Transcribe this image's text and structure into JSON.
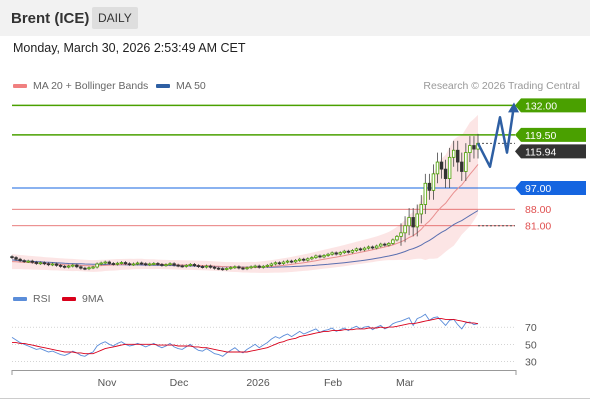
{
  "header": {
    "title": "Brent (ICE)",
    "timeframe": "DAILY"
  },
  "datetime": "Monday, March 30, 2026 2:53:49 AM CET",
  "credit": "Research © 2026 Trading Central",
  "legend": [
    {
      "label": "MA 20 + Bollinger Bands",
      "color": "#f08080"
    },
    {
      "label": "MA 50",
      "color": "#2e5fa3"
    }
  ],
  "rsi_legend": [
    {
      "label": "RSI",
      "color": "#5b8dd9"
    },
    {
      "label": "9MA",
      "color": "#d9001b"
    }
  ],
  "colors": {
    "green": "#4aa000",
    "blue": "#1565e0",
    "red": "#e05050",
    "dark": "#333333",
    "bullish": "#4aa000",
    "bearish": "#333333"
  },
  "chart_data": [
    {
      "type": "candlestick",
      "ylim": [
        58,
        136
      ],
      "x_ticks": [
        "Nov",
        "Dec",
        "2026",
        "Feb",
        "Mar"
      ],
      "levels": [
        {
          "value": 132.0,
          "label": "132.00",
          "color": "#4aa000",
          "style": "resistance"
        },
        {
          "value": 119.5,
          "label": "119.50",
          "color": "#4aa000",
          "style": "resistance"
        },
        {
          "value": 115.94,
          "label": "115.94",
          "color": "#333333",
          "style": "last"
        },
        {
          "value": 97.0,
          "label": "97.00",
          "color": "#1565e0",
          "style": "pivot"
        },
        {
          "value": 88.0,
          "label": "88.00",
          "color": "#e05050",
          "style": "support"
        },
        {
          "value": 81.0,
          "label": "81.00",
          "color": "#e05050",
          "style": "support"
        }
      ],
      "forecast": [
        115.94,
        106,
        127,
        112,
        132
      ],
      "closes": [
        67.5,
        66.8,
        66.2,
        65.8,
        66.0,
        65.5,
        65.0,
        65.3,
        64.9,
        64.5,
        64.8,
        64.2,
        63.8,
        63.5,
        63.9,
        64.3,
        63.6,
        63.0,
        62.8,
        63.2,
        63.5,
        64.8,
        65.2,
        65.6,
        65.0,
        64.7,
        65.1,
        65.4,
        64.9,
        64.6,
        64.8,
        65.2,
        64.9,
        64.5,
        64.8,
        65.0,
        64.6,
        64.2,
        64.5,
        64.9,
        64.3,
        64.0,
        63.8,
        64.2,
        64.6,
        64.1,
        63.7,
        63.5,
        63.9,
        63.4,
        63.0,
        62.8,
        62.5,
        62.9,
        63.3,
        63.6,
        63.1,
        62.8,
        63.2,
        63.6,
        63.9,
        63.4,
        63.8,
        64.2,
        64.8,
        65.3,
        65.0,
        65.6,
        66.0,
        65.7,
        66.3,
        66.8,
        66.4,
        67.0,
        67.5,
        68.2,
        67.8,
        68.4,
        68.9,
        69.5,
        69.0,
        69.6,
        70.2,
        69.8,
        70.5,
        71.2,
        70.8,
        71.5,
        72.0,
        71.6,
        72.4,
        73.2,
        72.8,
        73.5,
        75.0,
        76.5,
        78.0,
        81.0,
        84.5,
        80.5,
        86.0,
        90.0,
        99.0,
        96.0,
        103.0,
        108.0,
        105.0,
        101.0,
        110.0,
        113.0,
        108.0,
        104.0,
        112.0,
        115.0,
        113.5,
        115.94
      ],
      "ma50": [
        66.5,
        66.3,
        66.2,
        66.1,
        66.0,
        65.9,
        65.8,
        65.7,
        65.6,
        65.5,
        65.4,
        65.3,
        65.2,
        65.1,
        65.0,
        64.95,
        64.9,
        64.85,
        64.8,
        64.75,
        64.7,
        64.65,
        64.6,
        64.58,
        64.55,
        64.52,
        64.5,
        64.48,
        64.45,
        64.42,
        64.4,
        64.38,
        64.35,
        64.32,
        64.3,
        64.27,
        64.24,
        64.2,
        64.17,
        64.14,
        64.1,
        64.06,
        64.02,
        63.98,
        63.95,
        63.92,
        63.88,
        63.84,
        63.8,
        63.76,
        63.72,
        63.68,
        63.64,
        63.6,
        63.56,
        63.53,
        63.5,
        63.48,
        63.46,
        63.45,
        63.44,
        63.43,
        63.42,
        63.42,
        63.43,
        63.45,
        63.5,
        63.56,
        63.62,
        63.68,
        63.75,
        63.83,
        63.92,
        64.02,
        64.12,
        64.25,
        64.38,
        64.52,
        64.66,
        64.82,
        64.98,
        65.15,
        65.33,
        65.52,
        65.72,
        65.93,
        66.15,
        66.4,
        66.66,
        66.92,
        67.2,
        67.5,
        67.82,
        68.16,
        68.55,
        69.0,
        69.5,
        70.1,
        70.8,
        71.3,
        72.0,
        72.8,
        73.9,
        74.8,
        75.9,
        77.1,
        78.2,
        79.1,
        80.3,
        81.5,
        82.4,
        83.2,
        84.3,
        85.4,
        86.4,
        87.4
      ],
      "ma20": [
        65.8,
        65.7,
        65.6,
        65.5,
        65.4,
        65.3,
        65.2,
        65.1,
        65.0,
        64.9,
        64.8,
        64.7,
        64.6,
        64.5,
        64.4,
        64.35,
        64.3,
        64.2,
        64.1,
        64.0,
        63.95,
        64.0,
        64.1,
        64.2,
        64.3,
        64.4,
        64.5,
        64.6,
        64.65,
        64.7,
        64.75,
        64.8,
        64.8,
        64.75,
        64.7,
        64.7,
        64.65,
        64.6,
        64.55,
        64.5,
        64.45,
        64.4,
        64.35,
        64.3,
        64.3,
        64.25,
        64.2,
        64.15,
        64.1,
        64.0,
        63.9,
        63.8,
        63.7,
        63.6,
        63.55,
        63.5,
        63.45,
        63.4,
        63.38,
        63.36,
        63.35,
        63.4,
        63.5,
        63.6,
        63.75,
        63.9,
        64.05,
        64.2,
        64.4,
        64.6,
        64.85,
        65.1,
        65.35,
        65.6,
        65.9,
        66.2,
        66.5,
        66.8,
        67.1,
        67.4,
        67.7,
        68.0,
        68.35,
        68.7,
        69.05,
        69.4,
        69.75,
        70.1,
        70.45,
        70.8,
        71.2,
        71.6,
        72.0,
        72.4,
        72.9,
        73.5,
        74.2,
        75.0,
        76.0,
        76.8,
        78.0,
        79.5,
        81.5,
        83.0,
        85.0,
        87.2,
        89.0,
        90.5,
        92.8,
        95.0,
        96.8,
        98.3,
        100.5,
        102.8,
        104.8,
        107.0
      ],
      "bb_width": [
        3.2,
        3.1,
        3.0,
        3.0,
        2.9,
        2.9,
        2.8,
        2.8,
        2.7,
        2.7,
        2.7,
        2.6,
        2.6,
        2.6,
        2.6,
        2.6,
        2.5,
        2.5,
        2.5,
        2.5,
        2.5,
        2.5,
        2.5,
        2.4,
        2.4,
        2.4,
        2.4,
        2.3,
        2.3,
        2.3,
        2.2,
        2.2,
        2.2,
        2.1,
        2.1,
        2.1,
        2.0,
        2.0,
        2.0,
        2.0,
        2.0,
        2.0,
        2.0,
        2.0,
        2.0,
        2.0,
        2.0,
        2.0,
        2.0,
        2.0,
        2.0,
        2.0,
        2.0,
        2.0,
        2.1,
        2.1,
        2.1,
        2.2,
        2.2,
        2.3,
        2.3,
        2.4,
        2.5,
        2.6,
        2.7,
        2.8,
        2.9,
        3.0,
        3.1,
        3.2,
        3.3,
        3.4,
        3.5,
        3.6,
        3.7,
        3.8,
        3.9,
        4.0,
        4.1,
        4.2,
        4.3,
        4.4,
        4.5,
        4.6,
        4.7,
        4.8,
        4.9,
        5.0,
        5.1,
        5.2,
        5.3,
        5.5,
        5.7,
        6.0,
        6.5,
        7.0,
        7.6,
        8.5,
        9.5,
        10.0,
        11.0,
        12.5,
        15.0,
        16.0,
        18.0,
        20.0,
        20.5,
        20.5,
        21.5,
        22.5,
        22.0,
        21.0,
        21.5,
        22.0,
        21.5,
        21.0
      ]
    },
    {
      "type": "line",
      "ylim": [
        20,
        90
      ],
      "y_ticks": [
        70,
        50,
        30
      ],
      "rsi": [
        58,
        55,
        52,
        50,
        48,
        46,
        44,
        45,
        43,
        41,
        42,
        40,
        38,
        37,
        39,
        42,
        40,
        37,
        36,
        39,
        41,
        48,
        51,
        53,
        50,
        48,
        51,
        53,
        50,
        48,
        49,
        51,
        49,
        47,
        49,
        51,
        48,
        46,
        48,
        51,
        47,
        45,
        44,
        47,
        50,
        46,
        43,
        42,
        45,
        42,
        39,
        38,
        36,
        40,
        43,
        46,
        42,
        40,
        44,
        47,
        50,
        46,
        49,
        52,
        56,
        59,
        57,
        60,
        62,
        59,
        62,
        65,
        62,
        64,
        66,
        68,
        64,
        66,
        67,
        69,
        65,
        67,
        69,
        66,
        69,
        71,
        68,
        70,
        71,
        67,
        70,
        72,
        68,
        70,
        74,
        76,
        77,
        79,
        81,
        72,
        80,
        82,
        85,
        78,
        81,
        82,
        77,
        72,
        78,
        79,
        73,
        68,
        75,
        76,
        73,
        74
      ],
      "ma9": [
        52,
        52,
        51,
        51,
        50,
        49,
        48,
        47,
        46,
        45,
        44,
        43,
        42,
        41,
        41,
        41,
        40,
        40,
        39,
        39,
        39,
        41,
        43,
        45,
        46,
        47,
        48,
        49,
        50,
        50,
        50,
        50,
        50,
        50,
        50,
        50,
        49,
        49,
        49,
        49,
        49,
        48,
        48,
        48,
        48,
        47,
        47,
        46,
        46,
        45,
        44,
        43,
        42,
        41,
        41,
        41,
        41,
        41,
        41,
        42,
        43,
        44,
        45,
        46,
        48,
        50,
        52,
        53,
        55,
        56,
        57,
        59,
        60,
        61,
        62,
        63,
        64,
        65,
        65,
        66,
        66,
        66,
        67,
        67,
        67,
        68,
        68,
        68,
        69,
        69,
        69,
        70,
        69,
        70,
        70,
        71,
        72,
        73,
        74,
        74,
        75,
        76,
        77,
        78,
        79,
        80,
        80,
        79,
        79,
        79,
        78,
        77,
        76,
        75,
        75,
        74
      ]
    }
  ]
}
